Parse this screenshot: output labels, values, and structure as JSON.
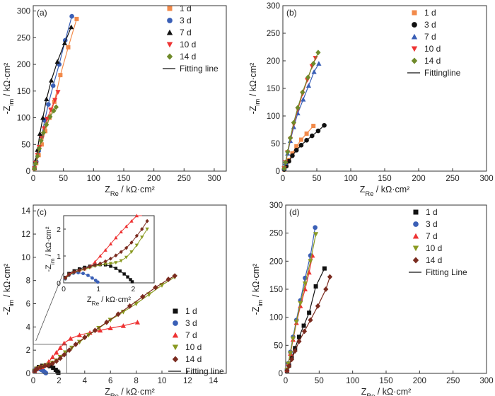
{
  "figure": {
    "marker_colors": {
      "square_orange": "#f28a4a",
      "square_black": "#111111",
      "circle_blue": "#3a5fb6",
      "circle_black": "#111111",
      "triangle_black": "#111111",
      "triangle_blue": "#3a5fb6",
      "triangle_red": "#ee3333",
      "tri_down_red": "#ee3333",
      "tri_down_olive": "#8a9a22",
      "diamond_olive": "#6f8a2a",
      "diamond_brown": "#7a2b1f"
    }
  },
  "chart_data": [
    {
      "panel": "(a)",
      "type": "scatter",
      "xlabel": "Z_Re / kΩ·cm²",
      "ylabel": "-Z_im / kΩ·cm²",
      "xlim": [
        0,
        320
      ],
      "ylim": [
        0,
        310
      ],
      "xticks": [
        0,
        50,
        100,
        150,
        200,
        250,
        300
      ],
      "yticks": [
        0,
        50,
        100,
        150,
        200,
        250,
        300
      ],
      "legend_position": "top-right",
      "legend_fit_label": "Fitting line",
      "series": [
        {
          "name": "1 d",
          "marker": "square",
          "color": "#f28a4a",
          "x": [
            2,
            5,
            9,
            14,
            20,
            27,
            35,
            45,
            58,
            72
          ],
          "y": [
            5,
            15,
            30,
            50,
            75,
            100,
            130,
            180,
            232,
            285
          ]
        },
        {
          "name": "3 d",
          "marker": "circle",
          "color": "#3a5fb6",
          "x": [
            2,
            5,
            9,
            14,
            19,
            25,
            33,
            43,
            53,
            64
          ],
          "y": [
            6,
            18,
            38,
            65,
            95,
            125,
            160,
            200,
            245,
            290
          ]
        },
        {
          "name": "7 d",
          "marker": "triangle",
          "color": "#111111",
          "x": [
            2,
            4,
            7,
            11,
            16,
            22,
            30,
            40,
            52,
            63
          ],
          "y": [
            7,
            20,
            40,
            70,
            100,
            135,
            170,
            205,
            240,
            270
          ]
        },
        {
          "name": "10 d",
          "marker": "tri-down",
          "color": "#ee3333",
          "x": [
            2,
            4,
            7,
            10,
            14,
            18,
            23,
            29,
            36,
            41
          ],
          "y": [
            5,
            15,
            30,
            45,
            62,
            80,
            98,
            115,
            133,
            148
          ]
        },
        {
          "name": "14 d",
          "marker": "diamond",
          "color": "#6f8a2a",
          "x": [
            2,
            4,
            7,
            10,
            13,
            17,
            22,
            28,
            34,
            38
          ],
          "y": [
            5,
            14,
            28,
            42,
            57,
            72,
            87,
            102,
            113,
            120
          ]
        }
      ]
    },
    {
      "panel": "(b)",
      "type": "scatter",
      "xlabel": "Z_Re / kΩ·cm²",
      "ylabel": "-Z_im / kΩ·cm²",
      "xlim": [
        0,
        300
      ],
      "ylim": [
        0,
        300
      ],
      "xticks": [
        0,
        50,
        100,
        150,
        200,
        250,
        300
      ],
      "yticks": [
        0,
        50,
        100,
        150,
        200,
        250,
        300
      ],
      "legend_position": "top-right",
      "legend_fit_label": "Fittingline",
      "series": [
        {
          "name": "1 d",
          "marker": "square",
          "color": "#f28a4a",
          "x": [
            2,
            5,
            9,
            14,
            20,
            27,
            35,
            45
          ],
          "y": [
            3,
            10,
            20,
            32,
            45,
            57,
            68,
            82
          ]
        },
        {
          "name": "3 d",
          "marker": "circle",
          "color": "#111111",
          "x": [
            2,
            5,
            9,
            14,
            20,
            27,
            35,
            43,
            52,
            61
          ],
          "y": [
            3,
            9,
            18,
            28,
            38,
            47,
            56,
            64,
            73,
            83
          ]
        },
        {
          "name": "7 d",
          "marker": "triangle",
          "color": "#3a5fb6",
          "x": [
            2,
            4,
            7,
            11,
            16,
            22,
            30,
            38,
            46,
            53
          ],
          "y": [
            5,
            15,
            32,
            55,
            80,
            105,
            130,
            155,
            180,
            195
          ]
        },
        {
          "name": "10 d",
          "marker": "tri-down",
          "color": "#ee3333",
          "x": [
            2,
            4,
            7,
            11,
            16,
            22,
            29,
            36,
            43,
            48
          ],
          "y": [
            5,
            16,
            34,
            58,
            85,
            112,
            140,
            165,
            190,
            205
          ]
        },
        {
          "name": "14 d",
          "marker": "diamond",
          "color": "#6f8a2a",
          "x": [
            2,
            4,
            7,
            11,
            16,
            22,
            29,
            37,
            45,
            52
          ],
          "y": [
            5,
            16,
            35,
            60,
            88,
            115,
            143,
            170,
            195,
            215
          ]
        }
      ]
    },
    {
      "panel": "(c)",
      "type": "scatter",
      "xlabel": "Z_Re / kΩ·cm²",
      "ylabel": "-Z_im / kΩ·cm²",
      "xlim": [
        0,
        15
      ],
      "ylim": [
        0,
        14.5
      ],
      "xticks": [
        0,
        2,
        4,
        6,
        8,
        10,
        12,
        14
      ],
      "yticks": [
        0,
        2,
        4,
        6,
        8,
        10,
        12,
        14
      ],
      "legend_position": "bottom-right",
      "legend_fit_label": "Fitting line",
      "series": [
        {
          "name": "1 d",
          "marker": "square",
          "color": "#111111",
          "x": [
            0.1,
            0.25,
            0.45,
            0.7,
            1.0,
            1.3,
            1.55,
            1.75,
            1.88,
            1.95
          ],
          "y": [
            0.2,
            0.4,
            0.55,
            0.65,
            0.7,
            0.62,
            0.48,
            0.3,
            0.15,
            0.05
          ]
        },
        {
          "name": "3 d",
          "marker": "circle",
          "color": "#3a5fb6",
          "x": [
            0.1,
            0.2,
            0.35,
            0.5,
            0.65,
            0.8,
            0.9,
            0.98
          ],
          "y": [
            0.2,
            0.32,
            0.4,
            0.38,
            0.3,
            0.2,
            0.1,
            0.03
          ]
        },
        {
          "name": "7 d",
          "marker": "triangle",
          "color": "#ee3333",
          "x": [
            0.1,
            0.25,
            0.45,
            0.65,
            0.9,
            1.2,
            1.5,
            1.8,
            2.1,
            2.4,
            2.9,
            3.6,
            4.4,
            5.2,
            6.0,
            7.0,
            8.1
          ],
          "y": [
            0.25,
            0.4,
            0.5,
            0.55,
            0.7,
            1.0,
            1.4,
            1.8,
            2.2,
            2.6,
            3.0,
            3.3,
            3.5,
            3.7,
            3.9,
            4.1,
            4.4
          ]
        },
        {
          "name": "10 d",
          "marker": "tri-down",
          "color": "#8a9a22",
          "x": [
            0.1,
            0.3,
            0.6,
            0.9,
            1.2,
            1.5,
            1.8,
            2.1,
            2.5,
            3.0,
            3.6,
            4.3,
            5.1,
            6.0,
            7.0,
            8.0,
            9.0,
            10.0,
            11.0
          ],
          "y": [
            0.2,
            0.4,
            0.55,
            0.65,
            0.75,
            0.9,
            1.1,
            1.4,
            1.8,
            2.2,
            2.7,
            3.3,
            3.9,
            4.6,
            5.3,
            6.0,
            6.8,
            7.6,
            8.3
          ]
        },
        {
          "name": "14 d",
          "marker": "diamond",
          "color": "#7a2b1f",
          "x": [
            0.1,
            0.3,
            0.6,
            0.9,
            1.2,
            1.5,
            1.8,
            2.1,
            2.4,
            2.8,
            3.3,
            4.0,
            4.8,
            5.7,
            6.6,
            7.5,
            8.5,
            9.5,
            10.5,
            11.0
          ],
          "y": [
            0.2,
            0.4,
            0.55,
            0.65,
            0.72,
            0.85,
            1.05,
            1.3,
            1.6,
            2.0,
            2.5,
            3.1,
            3.7,
            4.4,
            5.1,
            5.8,
            6.6,
            7.4,
            8.1,
            8.4
          ]
        }
      ],
      "inset": {
        "xlim": [
          0,
          2.6
        ],
        "ylim": [
          0,
          2.5
        ],
        "xticks": [
          0,
          1,
          2
        ],
        "yticks": [
          0,
          1,
          2
        ],
        "xlabel": "Z_Re / kΩ·cm²",
        "ylabel": "-Z_im / kΩ·cm²",
        "series": [
          {
            "name": "1 d",
            "marker": "square",
            "color": "#111111",
            "x": [
              0.05,
              0.15,
              0.3,
              0.45,
              0.6,
              0.75,
              0.9,
              1.05,
              1.2,
              1.35,
              1.5,
              1.62,
              1.74,
              1.84,
              1.92,
              1.97
            ],
            "y": [
              0.2,
              0.35,
              0.45,
              0.52,
              0.58,
              0.62,
              0.66,
              0.68,
              0.67,
              0.62,
              0.54,
              0.44,
              0.33,
              0.22,
              0.12,
              0.04
            ]
          },
          {
            "name": "3 d",
            "marker": "circle",
            "color": "#3a5fb6",
            "x": [
              0.05,
              0.15,
              0.28,
              0.42,
              0.56,
              0.7,
              0.82,
              0.92,
              0.98
            ],
            "y": [
              0.15,
              0.28,
              0.36,
              0.38,
              0.35,
              0.28,
              0.18,
              0.09,
              0.03
            ]
          },
          {
            "name": "7 d",
            "marker": "triangle",
            "color": "#ee3333",
            "x": [
              0.05,
              0.15,
              0.3,
              0.45,
              0.6,
              0.75,
              0.9,
              1.05,
              1.2,
              1.35,
              1.5,
              1.65,
              1.8,
              1.95,
              2.1,
              2.25
            ],
            "y": [
              0.2,
              0.33,
              0.42,
              0.47,
              0.52,
              0.6,
              0.78,
              1.0,
              1.22,
              1.45,
              1.68,
              1.9,
              2.1,
              2.3,
              2.5,
              2.65
            ]
          },
          {
            "name": "10 d",
            "marker": "tri-down",
            "color": "#8a9a22",
            "x": [
              0.05,
              0.15,
              0.3,
              0.45,
              0.6,
              0.75,
              0.9,
              1.05,
              1.2,
              1.35,
              1.5,
              1.65,
              1.8,
              1.95,
              2.1,
              2.25,
              2.4
            ],
            "y": [
              0.15,
              0.28,
              0.38,
              0.45,
              0.5,
              0.56,
              0.62,
              0.66,
              0.7,
              0.72,
              0.75,
              0.82,
              0.95,
              1.15,
              1.4,
              1.7,
              2.0
            ]
          },
          {
            "name": "14 d",
            "marker": "diamond",
            "color": "#7a2b1f",
            "x": [
              0.05,
              0.15,
              0.3,
              0.45,
              0.6,
              0.75,
              0.9,
              1.05,
              1.2,
              1.35,
              1.5,
              1.65,
              1.8,
              1.95,
              2.1,
              2.25,
              2.4
            ],
            "y": [
              0.18,
              0.3,
              0.4,
              0.47,
              0.53,
              0.6,
              0.66,
              0.72,
              0.8,
              0.9,
              1.02,
              1.15,
              1.3,
              1.5,
              1.75,
              2.0,
              2.3
            ]
          }
        ]
      }
    },
    {
      "panel": "(d)",
      "type": "scatter",
      "xlabel": "Z_Re / kΩ·cm²",
      "ylabel": "-Z_im / kΩ·cm²",
      "xlim": [
        0,
        300
      ],
      "ylim": [
        0,
        300
      ],
      "xticks": [
        0,
        50,
        100,
        150,
        200,
        250,
        300
      ],
      "yticks": [
        0,
        50,
        100,
        150,
        200,
        250,
        300
      ],
      "legend_position": "top-right",
      "legend_fit_label": "Fitting Line",
      "series": [
        {
          "name": "1 d",
          "marker": "square",
          "color": "#111111",
          "x": [
            2,
            5,
            9,
            14,
            20,
            27,
            35,
            45,
            58
          ],
          "y": [
            5,
            14,
            28,
            45,
            65,
            85,
            108,
            155,
            187
          ]
        },
        {
          "name": "3 d",
          "marker": "circle",
          "color": "#3a5fb6",
          "x": [
            2,
            4,
            7,
            11,
            16,
            22,
            29,
            37,
            44
          ],
          "y": [
            6,
            18,
            38,
            65,
            95,
            130,
            170,
            210,
            260
          ]
        },
        {
          "name": "7 d",
          "marker": "triangle",
          "color": "#ee3333",
          "x": [
            2,
            4,
            7,
            11,
            16,
            22,
            29,
            35,
            40
          ],
          "y": [
            6,
            17,
            35,
            60,
            90,
            120,
            150,
            180,
            210
          ]
        },
        {
          "name": "10 d",
          "marker": "tri-down",
          "color": "#8a9a22",
          "x": [
            2,
            4,
            7,
            11,
            16,
            22,
            29,
            37,
            45
          ],
          "y": [
            6,
            17,
            36,
            62,
            92,
            125,
            160,
            200,
            248
          ]
        },
        {
          "name": "14 d",
          "marker": "diamond",
          "color": "#7a2b1f",
          "x": [
            2,
            5,
            9,
            14,
            20,
            28,
            37,
            48,
            60,
            66
          ],
          "y": [
            5,
            13,
            25,
            40,
            57,
            75,
            95,
            120,
            150,
            172
          ]
        }
      ]
    }
  ]
}
